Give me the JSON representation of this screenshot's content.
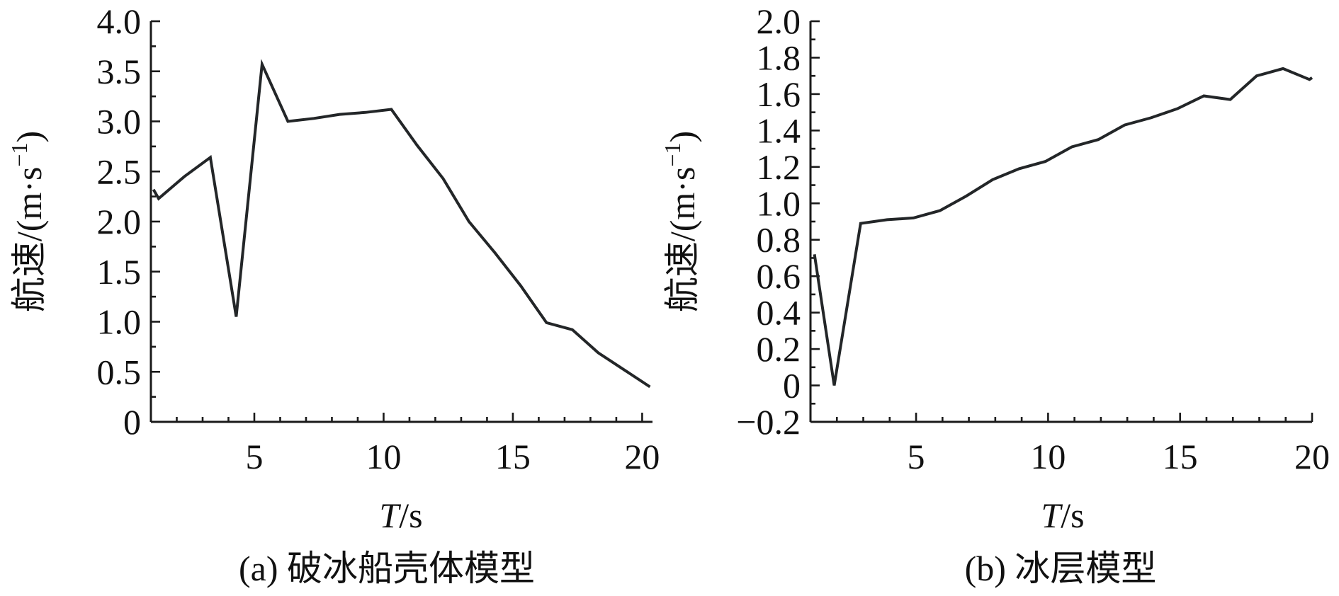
{
  "chart_data": [
    {
      "type": "line",
      "panel": "a",
      "caption": "(a) 破冰船壳体模型",
      "ylabel": "航速/(m·s⁻¹)",
      "xlabel": "T/s",
      "xlim": [
        1,
        20.4
      ],
      "ylim": [
        0,
        4.0
      ],
      "xticks": [
        5,
        10,
        15,
        20
      ],
      "xtick_labels": [
        "5",
        "10",
        "15",
        "20"
      ],
      "yticks": [
        0,
        0.5,
        1.0,
        1.5,
        2.0,
        2.5,
        3.0,
        3.5,
        4.0
      ],
      "ytick_labels": [
        "0",
        "0.5",
        "1.0",
        "1.5",
        "2.0",
        "2.5",
        "3.0",
        "3.5",
        "4.0"
      ],
      "grid": false,
      "series": [
        {
          "x": [
            1.1,
            1.3,
            2.3,
            3.3,
            4.3,
            5.3,
            6.3,
            7.3,
            8.3,
            9.3,
            10.3,
            11.3,
            12.3,
            13.3,
            14.3,
            15.3,
            16.3,
            17.3,
            18.3,
            19.3,
            20.3
          ],
          "y": [
            2.32,
            2.23,
            2.45,
            2.64,
            1.05,
            3.57,
            3.0,
            3.03,
            3.07,
            3.09,
            3.12,
            2.76,
            2.43,
            2.0,
            1.69,
            1.36,
            0.99,
            0.92,
            0.69,
            0.52,
            0.35
          ]
        }
      ]
    },
    {
      "type": "line",
      "panel": "b",
      "caption": "(b) 冰层模型",
      "ylabel": "航速/(m·s⁻¹)",
      "xlabel": "T/s",
      "xlim": [
        1,
        20
      ],
      "ylim": [
        -0.2,
        2.0
      ],
      "xticks": [
        5,
        10,
        15,
        20
      ],
      "xtick_labels": [
        "5",
        "10",
        "15",
        "20"
      ],
      "yticks": [
        -0.2,
        0,
        0.2,
        0.4,
        0.6,
        0.8,
        1.0,
        1.2,
        1.4,
        1.6,
        1.8,
        2.0
      ],
      "ytick_labels": [
        "−0.2",
        "0",
        "0.2",
        "0.4",
        "0.6",
        "0.8",
        "1.0",
        "1.2",
        "1.4",
        "1.6",
        "1.8",
        "2.0"
      ],
      "grid": false,
      "series": [
        {
          "x": [
            1.15,
            1.9,
            2.9,
            3.9,
            4.9,
            5.9,
            6.9,
            7.9,
            8.9,
            9.9,
            10.9,
            11.9,
            12.9,
            13.9,
            14.9,
            15.9,
            16.9,
            17.9,
            18.9,
            19.9,
            20.0
          ],
          "y": [
            0.72,
            0.0,
            0.89,
            0.91,
            0.92,
            0.96,
            1.04,
            1.13,
            1.19,
            1.23,
            1.31,
            1.35,
            1.43,
            1.47,
            1.52,
            1.59,
            1.57,
            1.7,
            1.74,
            1.68,
            1.69
          ]
        }
      ]
    }
  ],
  "colors": {
    "line": "#232628",
    "axis": "#1a1a1a",
    "text": "#111111"
  }
}
